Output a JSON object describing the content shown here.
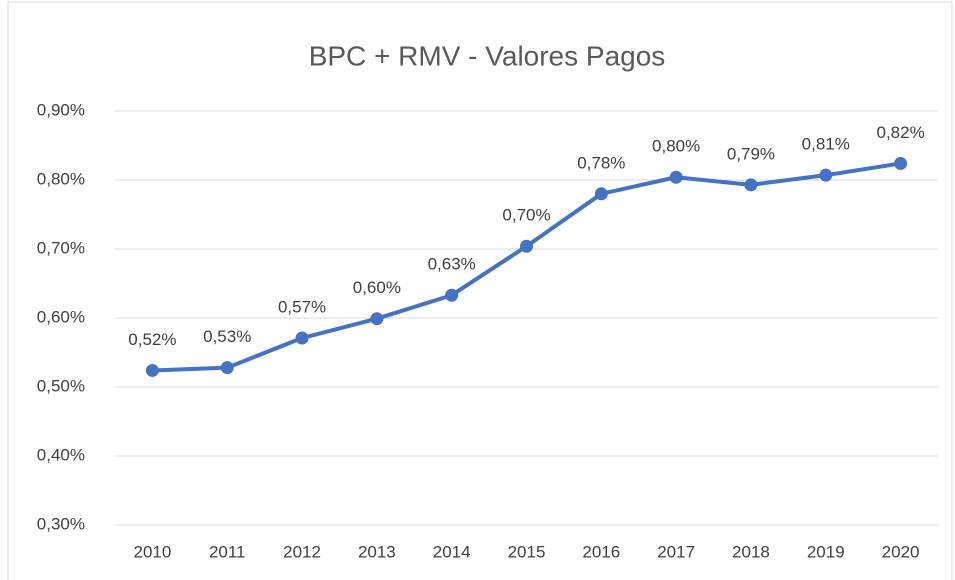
{
  "chart_data": {
    "type": "line",
    "title": "BPC + RMV - Valores Pagos",
    "categories": [
      "2010",
      "2011",
      "2012",
      "2013",
      "2014",
      "2015",
      "2016",
      "2017",
      "2018",
      "2019",
      "2020"
    ],
    "series": [
      {
        "name": "BPC + RMV",
        "color": "#4472c4",
        "values": [
          0.524,
          0.528,
          0.571,
          0.599,
          0.633,
          0.704,
          0.78,
          0.804,
          0.793,
          0.807,
          0.824
        ],
        "value_labels": [
          "0,52%",
          "0,53%",
          "0,57%",
          "0,60%",
          "0,63%",
          "0,70%",
          "0,78%",
          "0,80%",
          "0,79%",
          "0,81%",
          "0,82%"
        ]
      }
    ],
    "ylim": [
      0.3,
      0.9
    ],
    "yticks": [
      {
        "value": 0.3,
        "label": "0,30%"
      },
      {
        "value": 0.4,
        "label": "0,40%"
      },
      {
        "value": 0.5,
        "label": "0,50%"
      },
      {
        "value": 0.6,
        "label": "0,60%"
      },
      {
        "value": 0.7,
        "label": "0,70%"
      },
      {
        "value": 0.8,
        "label": "0,80%"
      },
      {
        "value": 0.9,
        "label": "0,90%"
      }
    ],
    "grid": true
  }
}
